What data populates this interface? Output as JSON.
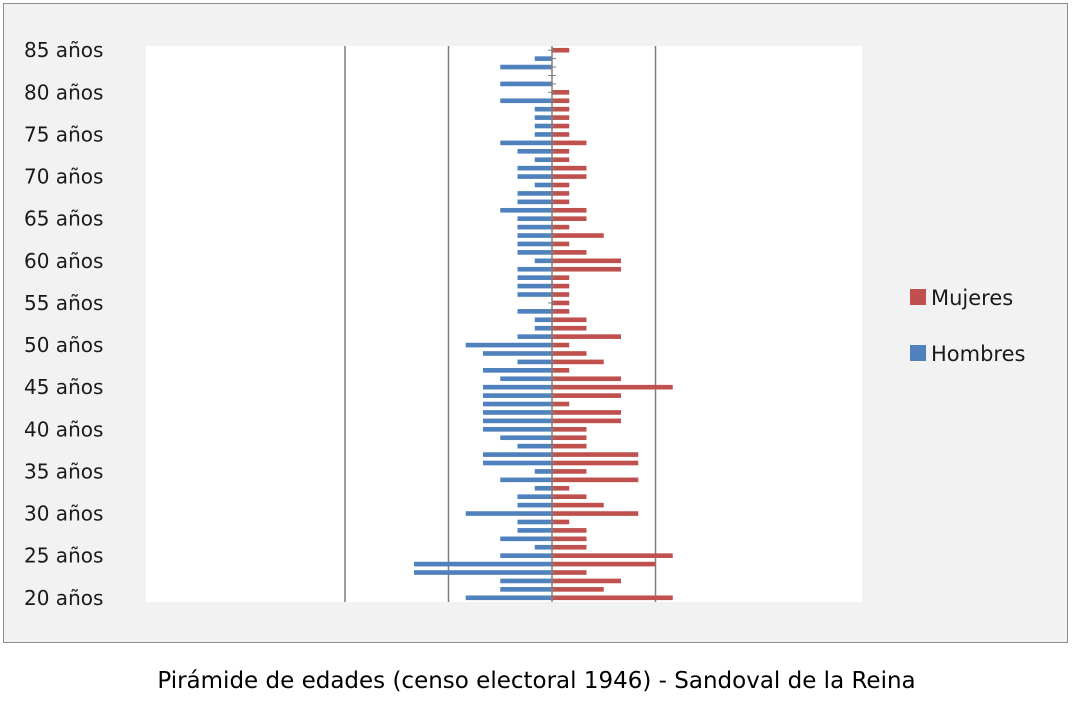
{
  "caption": "Pirámide de edades (censo electoral 1946) - Sandoval de la Reina",
  "chart_data": {
    "type": "bar",
    "orientation": "horizontal",
    "layout": "population-pyramid",
    "categories": [
      20,
      21,
      22,
      23,
      24,
      25,
      26,
      27,
      28,
      29,
      30,
      31,
      32,
      33,
      34,
      35,
      36,
      37,
      38,
      39,
      40,
      41,
      42,
      43,
      44,
      45,
      46,
      47,
      48,
      49,
      50,
      51,
      52,
      53,
      54,
      55,
      56,
      57,
      58,
      59,
      60,
      61,
      62,
      63,
      64,
      65,
      66,
      67,
      68,
      69,
      70,
      71,
      72,
      73,
      74,
      75,
      76,
      77,
      78,
      79,
      80,
      81,
      82,
      83,
      84,
      85
    ],
    "category_tick_labels": [
      {
        "category": 20,
        "label": "20 años"
      },
      {
        "category": 25,
        "label": "25 años"
      },
      {
        "category": 30,
        "label": "30 años"
      },
      {
        "category": 35,
        "label": "35 años"
      },
      {
        "category": 40,
        "label": "40 años"
      },
      {
        "category": 45,
        "label": "45 años"
      },
      {
        "category": 50,
        "label": "50 años"
      },
      {
        "category": 55,
        "label": "55 años"
      },
      {
        "category": 60,
        "label": "60 años"
      },
      {
        "category": 65,
        "label": "65 años"
      },
      {
        "category": 70,
        "label": "70 años"
      },
      {
        "category": 75,
        "label": "75 años"
      },
      {
        "category": 80,
        "label": "80 años"
      },
      {
        "category": 85,
        "label": "85 años"
      }
    ],
    "series": [
      {
        "name": "Mujeres",
        "color": "#c0504d",
        "side": "right",
        "values": [
          7,
          3,
          4,
          2,
          6,
          7,
          2,
          2,
          2,
          1,
          5,
          3,
          2,
          1,
          5,
          2,
          5,
          5,
          2,
          2,
          2,
          4,
          4,
          1,
          4,
          7,
          4,
          1,
          3,
          2,
          1,
          4,
          2,
          2,
          1,
          1,
          1,
          1,
          1,
          4,
          4,
          2,
          1,
          3,
          1,
          2,
          2,
          1,
          1,
          1,
          2,
          2,
          1,
          1,
          2,
          1,
          1,
          1,
          1,
          1,
          1,
          0,
          0,
          0,
          0,
          1
        ]
      },
      {
        "name": "Hombres",
        "color": "#4f81bd",
        "side": "left",
        "values": [
          5,
          3,
          3,
          8,
          8,
          3,
          1,
          3,
          2,
          2,
          5,
          2,
          2,
          1,
          3,
          1,
          4,
          4,
          2,
          3,
          4,
          4,
          4,
          4,
          4,
          4,
          3,
          4,
          2,
          4,
          5,
          2,
          1,
          1,
          2,
          0,
          2,
          2,
          2,
          2,
          1,
          2,
          2,
          2,
          2,
          2,
          3,
          2,
          2,
          1,
          2,
          2,
          1,
          2,
          3,
          1,
          1,
          1,
          1,
          3,
          0,
          3,
          0,
          3,
          1,
          0
        ]
      }
    ],
    "xlim": [
      -12,
      8
    ],
    "grid": "vertical lines only",
    "legend": "right"
  }
}
